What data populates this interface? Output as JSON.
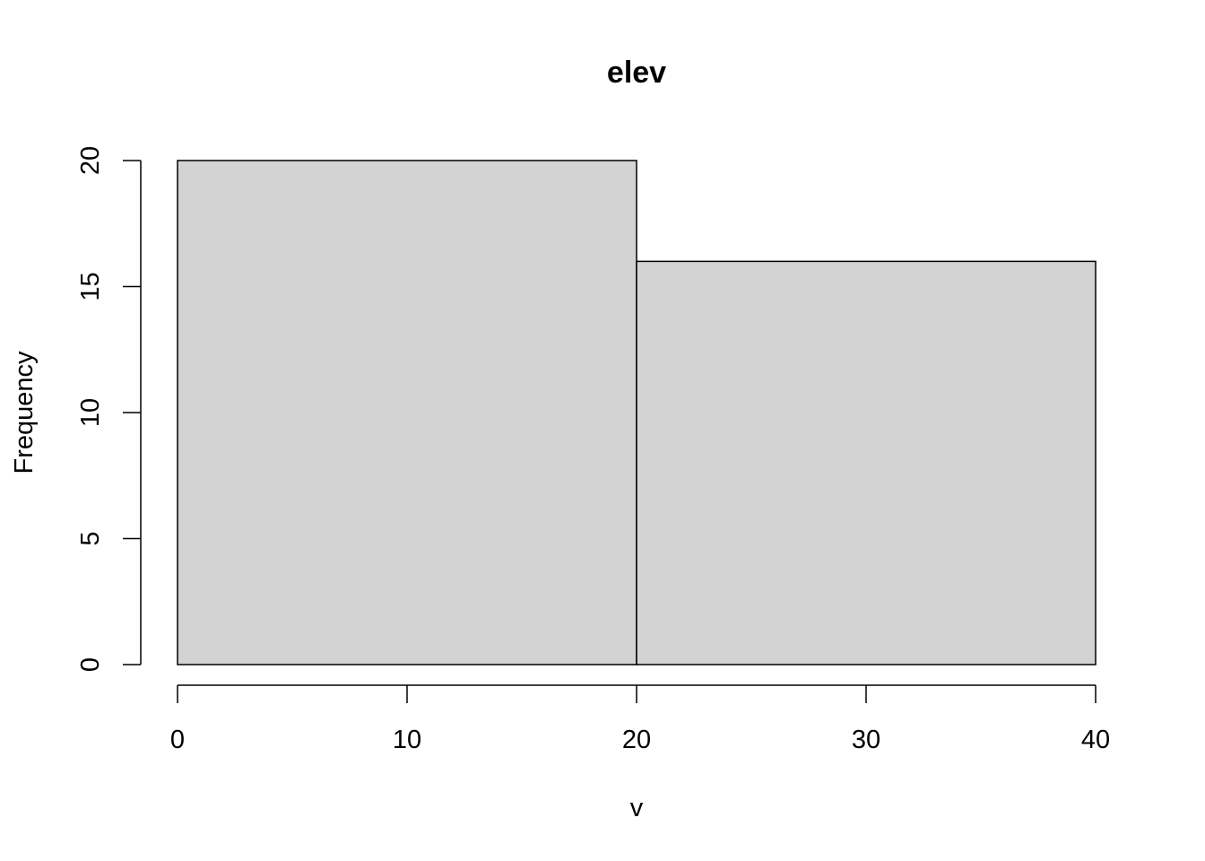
{
  "chart_data": {
    "type": "bar",
    "subtype": "histogram",
    "title": "elev",
    "xlabel": "v",
    "ylabel": "Frequency",
    "bins": [
      {
        "start": 0,
        "end": 20,
        "count": 20
      },
      {
        "start": 20,
        "end": 40,
        "count": 16
      }
    ],
    "xlim": [
      0,
      40
    ],
    "ylim": [
      0,
      20
    ],
    "xticks": [
      0,
      10,
      20,
      30,
      40
    ],
    "yticks": [
      0,
      5,
      10,
      15,
      20
    ],
    "grid": false,
    "legend": "none",
    "bar_color": "#d3d3d3",
    "edge_color": "#000000"
  }
}
